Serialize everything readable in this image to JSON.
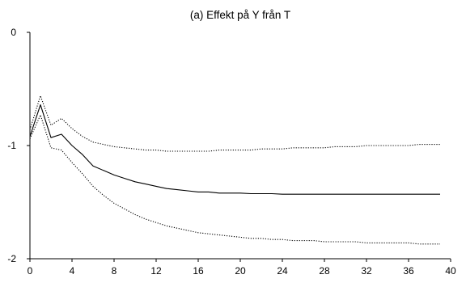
{
  "chart_data": {
    "type": "line",
    "title": "(a) Effekt på Y från T",
    "xlabel": "",
    "ylabel": "",
    "xlim": [
      0,
      40
    ],
    "ylim": [
      -2,
      0
    ],
    "x_ticks": [
      0,
      4,
      8,
      12,
      16,
      20,
      24,
      28,
      32,
      36,
      40
    ],
    "y_ticks": [
      0,
      -1,
      -2
    ],
    "grid": false,
    "legend": "none",
    "x": [
      0,
      1,
      2,
      3,
      4,
      5,
      6,
      7,
      8,
      9,
      10,
      11,
      12,
      13,
      14,
      15,
      16,
      17,
      18,
      19,
      20,
      21,
      22,
      23,
      24,
      25,
      26,
      27,
      28,
      29,
      30,
      31,
      32,
      33,
      34,
      35,
      36,
      37,
      38,
      39
    ],
    "series": [
      {
        "style": "solid",
        "color": "#000000",
        "values": [
          -0.92,
          -0.64,
          -0.93,
          -0.9,
          -1.0,
          -1.08,
          -1.18,
          -1.22,
          -1.26,
          -1.29,
          -1.32,
          -1.34,
          -1.36,
          -1.38,
          -1.39,
          -1.4,
          -1.41,
          -1.41,
          -1.42,
          -1.42,
          -1.42,
          -1.425,
          -1.425,
          -1.425,
          -1.43,
          -1.43,
          -1.43,
          -1.43,
          -1.43,
          -1.43,
          -1.43,
          -1.43,
          -1.43,
          -1.43,
          -1.43,
          -1.43,
          -1.43,
          -1.43,
          -1.43,
          -1.43
        ]
      },
      {
        "style": "dotted",
        "color": "#000000",
        "values": [
          -0.86,
          -0.56,
          -0.82,
          -0.76,
          -0.85,
          -0.92,
          -0.97,
          -0.99,
          -1.01,
          -1.02,
          -1.03,
          -1.04,
          -1.04,
          -1.05,
          -1.05,
          -1.05,
          -1.05,
          -1.05,
          -1.04,
          -1.04,
          -1.04,
          -1.04,
          -1.03,
          -1.03,
          -1.03,
          -1.02,
          -1.02,
          -1.02,
          -1.02,
          -1.01,
          -1.01,
          -1.01,
          -1.0,
          -1.0,
          -1.0,
          -1.0,
          -1.0,
          -0.99,
          -0.99,
          -0.99
        ]
      },
      {
        "style": "dotted",
        "color": "#000000",
        "values": [
          -0.94,
          -0.73,
          -1.02,
          -1.04,
          -1.15,
          -1.25,
          -1.36,
          -1.44,
          -1.51,
          -1.56,
          -1.61,
          -1.65,
          -1.68,
          -1.71,
          -1.73,
          -1.75,
          -1.77,
          -1.78,
          -1.79,
          -1.8,
          -1.81,
          -1.82,
          -1.82,
          -1.83,
          -1.83,
          -1.84,
          -1.84,
          -1.84,
          -1.85,
          -1.85,
          -1.85,
          -1.85,
          -1.86,
          -1.86,
          -1.86,
          -1.86,
          -1.86,
          -1.87,
          -1.87,
          -1.87
        ]
      }
    ]
  }
}
